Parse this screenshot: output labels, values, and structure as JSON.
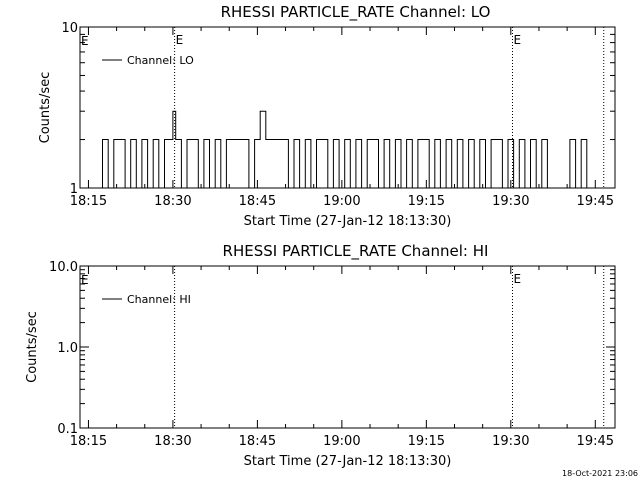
{
  "timestamp": "18-Oct-2021 23:06",
  "chart_data": [
    {
      "type": "line",
      "title": "RHESSI PARTICLE_RATE Channel: LO",
      "xlabel": "Start Time (27-Jan-12 18:13:30)",
      "ylabel": "Counts/sec",
      "x_units": "minutes after 18:13:30",
      "xlim": [
        0,
        95
      ],
      "x_ticks": [
        {
          "label": "18:15",
          "value": 1.5
        },
        {
          "label": "18:30",
          "value": 16.5
        },
        {
          "label": "18:45",
          "value": 31.5
        },
        {
          "label": "19:00",
          "value": 46.5
        },
        {
          "label": "19:15",
          "value": 61.5
        },
        {
          "label": "19:30",
          "value": 76.5
        },
        {
          "label": "19:45",
          "value": 91.5
        }
      ],
      "y_scale": "log",
      "ylim": [
        1,
        10
      ],
      "y_ticks": [
        {
          "label": "1",
          "value": 1
        },
        {
          "label": "10",
          "value": 10
        }
      ],
      "legend": {
        "position": "top-left",
        "entries": [
          "Channel: LO"
        ]
      },
      "vlines": [
        {
          "x": 16.8,
          "label": "E"
        },
        {
          "x": 76.8,
          "label": "E"
        },
        {
          "x": 93.0,
          "label": ""
        }
      ],
      "edge_marker": "E",
      "series": [
        {
          "name": "Channel: LO",
          "step": true,
          "x": [
            0,
            4,
            5,
            6,
            7,
            8,
            9,
            10,
            11,
            12,
            13,
            14,
            15,
            16,
            16.5,
            17,
            18,
            19,
            20,
            21,
            22,
            23,
            24,
            25,
            26,
            27,
            27.5,
            28,
            29,
            30,
            31,
            32,
            33,
            34,
            35,
            36,
            37,
            38,
            39,
            40,
            41,
            42,
            43,
            44,
            45,
            46,
            47,
            48,
            49,
            50,
            51,
            52,
            53,
            54,
            55,
            56,
            57,
            58,
            59,
            60,
            61,
            62,
            63,
            64,
            65,
            66,
            67,
            68,
            69,
            70,
            71,
            72,
            73,
            74,
            75,
            76,
            77,
            78,
            79,
            80,
            81,
            82,
            83,
            84,
            85,
            86,
            87,
            88,
            89,
            90,
            91,
            92
          ],
          "y": [
            1,
            2,
            1,
            2,
            2,
            1,
            2,
            1,
            2,
            1,
            2,
            1,
            2,
            2,
            3,
            2,
            1,
            2,
            2,
            1,
            2,
            1,
            2,
            1,
            2,
            2,
            2,
            2,
            2,
            1,
            2,
            3,
            2,
            2,
            2,
            2,
            1,
            2,
            1,
            2,
            1,
            2,
            2,
            1,
            2,
            1,
            2,
            1,
            2,
            1,
            2,
            2,
            1,
            2,
            1,
            2,
            1,
            2,
            1,
            2,
            2,
            1,
            2,
            1,
            2,
            1,
            2,
            1,
            2,
            1,
            2,
            1,
            2,
            2,
            1,
            2,
            1,
            2,
            1,
            2,
            1,
            2,
            1,
            1,
            1,
            1,
            2,
            1,
            2,
            1,
            1,
            1
          ]
        }
      ]
    },
    {
      "type": "line",
      "title": "RHESSI PARTICLE_RATE Channel: HI",
      "xlabel": "Start Time (27-Jan-12 18:13:30)",
      "ylabel": "Counts/sec",
      "x_units": "minutes after 18:13:30",
      "xlim": [
        0,
        95
      ],
      "x_ticks": [
        {
          "label": "18:15",
          "value": 1.5
        },
        {
          "label": "18:30",
          "value": 16.5
        },
        {
          "label": "18:45",
          "value": 31.5
        },
        {
          "label": "19:00",
          "value": 46.5
        },
        {
          "label": "19:15",
          "value": 61.5
        },
        {
          "label": "19:30",
          "value": 76.5
        },
        {
          "label": "19:45",
          "value": 91.5
        }
      ],
      "y_scale": "log",
      "ylim": [
        0.1,
        10
      ],
      "y_ticks": [
        {
          "label": "0.1",
          "value": 0.1
        },
        {
          "label": "1.0",
          "value": 1
        },
        {
          "label": "10.0",
          "value": 10
        }
      ],
      "legend": {
        "position": "top-left",
        "entries": [
          "Channel: HI"
        ]
      },
      "vlines": [
        {
          "x": 16.8,
          "label": ""
        },
        {
          "x": 76.8,
          "label": "E"
        },
        {
          "x": 93.0,
          "label": ""
        }
      ],
      "edge_marker": "E",
      "series": [
        {
          "name": "Channel: HI",
          "step": true,
          "x": [],
          "y": []
        }
      ]
    }
  ]
}
